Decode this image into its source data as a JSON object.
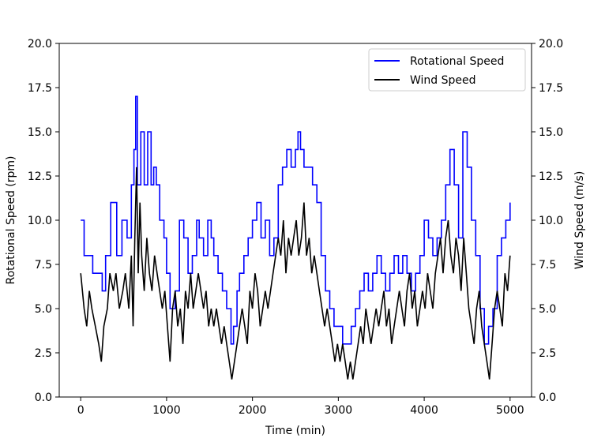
{
  "chart_data": {
    "type": "line",
    "title": "",
    "xlabel": "Time (min)",
    "ylabel_left": "Rotational Speed (rpm)",
    "ylabel_right": "Wind Speed (m/s)",
    "xlim": [
      -250,
      5250
    ],
    "ylim_left": [
      0,
      20
    ],
    "ylim_right": [
      0,
      20
    ],
    "xticks": [
      0,
      1000,
      2000,
      3000,
      4000,
      5000
    ],
    "xtick_labels": [
      "0",
      "1000",
      "2000",
      "3000",
      "4000",
      "5000"
    ],
    "yticks": [
      0,
      2.5,
      5,
      7.5,
      10,
      12.5,
      15,
      17.5,
      20
    ],
    "ytick_labels": [
      "0.0",
      "2.5",
      "5.0",
      "7.5",
      "10.0",
      "12.5",
      "15.0",
      "17.5",
      "20.0"
    ],
    "grid": false,
    "legend_position": "top-right",
    "series": [
      {
        "name": "Rotational Speed",
        "axis": "left",
        "color": "#0000ff",
        "step": true,
        "points": [
          [
            0,
            10
          ],
          [
            40,
            8
          ],
          [
            140,
            7
          ],
          [
            250,
            6
          ],
          [
            290,
            8
          ],
          [
            350,
            11
          ],
          [
            420,
            8
          ],
          [
            480,
            10
          ],
          [
            540,
            9
          ],
          [
            590,
            12
          ],
          [
            620,
            14
          ],
          [
            640,
            17
          ],
          [
            660,
            12
          ],
          [
            700,
            15
          ],
          [
            740,
            12
          ],
          [
            780,
            15
          ],
          [
            820,
            12
          ],
          [
            850,
            13
          ],
          [
            880,
            12
          ],
          [
            920,
            10
          ],
          [
            970,
            9
          ],
          [
            1000,
            7
          ],
          [
            1040,
            5
          ],
          [
            1100,
            6
          ],
          [
            1150,
            10
          ],
          [
            1200,
            9
          ],
          [
            1250,
            7
          ],
          [
            1300,
            8
          ],
          [
            1350,
            10
          ],
          [
            1380,
            9
          ],
          [
            1430,
            8
          ],
          [
            1480,
            10
          ],
          [
            1520,
            9
          ],
          [
            1550,
            8
          ],
          [
            1600,
            7
          ],
          [
            1650,
            6
          ],
          [
            1700,
            5
          ],
          [
            1750,
            3
          ],
          [
            1780,
            4
          ],
          [
            1820,
            6
          ],
          [
            1850,
            7
          ],
          [
            1900,
            8
          ],
          [
            1950,
            9
          ],
          [
            2000,
            10
          ],
          [
            2050,
            11
          ],
          [
            2100,
            9
          ],
          [
            2150,
            10
          ],
          [
            2200,
            8
          ],
          [
            2250,
            9
          ],
          [
            2300,
            12
          ],
          [
            2350,
            13
          ],
          [
            2400,
            14
          ],
          [
            2450,
            13
          ],
          [
            2500,
            14
          ],
          [
            2530,
            15
          ],
          [
            2560,
            14
          ],
          [
            2600,
            13
          ],
          [
            2650,
            13
          ],
          [
            2700,
            12
          ],
          [
            2750,
            11
          ],
          [
            2800,
            8
          ],
          [
            2850,
            6
          ],
          [
            2900,
            5
          ],
          [
            2950,
            4
          ],
          [
            3000,
            4
          ],
          [
            3050,
            3
          ],
          [
            3100,
            3
          ],
          [
            3150,
            4
          ],
          [
            3200,
            5
          ],
          [
            3250,
            6
          ],
          [
            3300,
            7
          ],
          [
            3350,
            6
          ],
          [
            3400,
            7
          ],
          [
            3450,
            8
          ],
          [
            3500,
            7
          ],
          [
            3550,
            6
          ],
          [
            3600,
            7
          ],
          [
            3650,
            8
          ],
          [
            3700,
            7
          ],
          [
            3750,
            8
          ],
          [
            3800,
            7
          ],
          [
            3850,
            6
          ],
          [
            3900,
            7
          ],
          [
            3950,
            8
          ],
          [
            4000,
            10
          ],
          [
            4050,
            9
          ],
          [
            4100,
            8
          ],
          [
            4150,
            9
          ],
          [
            4200,
            10
          ],
          [
            4250,
            12
          ],
          [
            4300,
            14
          ],
          [
            4350,
            12
          ],
          [
            4400,
            9
          ],
          [
            4450,
            15
          ],
          [
            4500,
            13
          ],
          [
            4550,
            10
          ],
          [
            4600,
            8
          ],
          [
            4650,
            5
          ],
          [
            4700,
            3
          ],
          [
            4750,
            4
          ],
          [
            4800,
            5
          ],
          [
            4850,
            8
          ],
          [
            4900,
            9
          ],
          [
            4950,
            10
          ],
          [
            5000,
            11
          ]
        ]
      },
      {
        "name": "Wind Speed",
        "axis": "right",
        "color": "#000000",
        "step": false,
        "points": [
          [
            0,
            7
          ],
          [
            40,
            5
          ],
          [
            70,
            4
          ],
          [
            100,
            6
          ],
          [
            130,
            5
          ],
          [
            170,
            4
          ],
          [
            210,
            3
          ],
          [
            240,
            2
          ],
          [
            270,
            4
          ],
          [
            310,
            5
          ],
          [
            340,
            7
          ],
          [
            380,
            6
          ],
          [
            410,
            7
          ],
          [
            450,
            5
          ],
          [
            490,
            6
          ],
          [
            520,
            7
          ],
          [
            560,
            5
          ],
          [
            590,
            8
          ],
          [
            610,
            4
          ],
          [
            630,
            9
          ],
          [
            650,
            13
          ],
          [
            670,
            7
          ],
          [
            690,
            11
          ],
          [
            710,
            8
          ],
          [
            740,
            6
          ],
          [
            770,
            9
          ],
          [
            800,
            7
          ],
          [
            830,
            6
          ],
          [
            860,
            8
          ],
          [
            890,
            7
          ],
          [
            920,
            6
          ],
          [
            950,
            5
          ],
          [
            980,
            6
          ],
          [
            1010,
            4
          ],
          [
            1040,
            2
          ],
          [
            1070,
            5
          ],
          [
            1100,
            6
          ],
          [
            1130,
            4
          ],
          [
            1160,
            5
          ],
          [
            1190,
            3
          ],
          [
            1220,
            6
          ],
          [
            1250,
            5
          ],
          [
            1280,
            7
          ],
          [
            1310,
            5
          ],
          [
            1340,
            6
          ],
          [
            1370,
            7
          ],
          [
            1400,
            6
          ],
          [
            1430,
            5
          ],
          [
            1460,
            6
          ],
          [
            1490,
            4
          ],
          [
            1520,
            5
          ],
          [
            1550,
            4
          ],
          [
            1580,
            5
          ],
          [
            1610,
            4
          ],
          [
            1640,
            3
          ],
          [
            1670,
            4
          ],
          [
            1700,
            3
          ],
          [
            1730,
            2
          ],
          [
            1760,
            1
          ],
          [
            1790,
            2
          ],
          [
            1820,
            3
          ],
          [
            1850,
            4
          ],
          [
            1880,
            5
          ],
          [
            1910,
            4
          ],
          [
            1940,
            3
          ],
          [
            1970,
            6
          ],
          [
            2000,
            5
          ],
          [
            2030,
            7
          ],
          [
            2060,
            6
          ],
          [
            2090,
            4
          ],
          [
            2120,
            5
          ],
          [
            2150,
            6
          ],
          [
            2180,
            5
          ],
          [
            2210,
            6
          ],
          [
            2240,
            7
          ],
          [
            2270,
            8
          ],
          [
            2300,
            9
          ],
          [
            2330,
            8
          ],
          [
            2360,
            10
          ],
          [
            2390,
            7
          ],
          [
            2420,
            9
          ],
          [
            2450,
            8
          ],
          [
            2480,
            9
          ],
          [
            2510,
            10
          ],
          [
            2540,
            8
          ],
          [
            2570,
            9
          ],
          [
            2600,
            11
          ],
          [
            2630,
            8
          ],
          [
            2660,
            9
          ],
          [
            2690,
            7
          ],
          [
            2720,
            8
          ],
          [
            2750,
            7
          ],
          [
            2780,
            6
          ],
          [
            2810,
            5
          ],
          [
            2840,
            4
          ],
          [
            2870,
            5
          ],
          [
            2900,
            4
          ],
          [
            2930,
            3
          ],
          [
            2960,
            2
          ],
          [
            2990,
            3
          ],
          [
            3020,
            2
          ],
          [
            3050,
            3
          ],
          [
            3080,
            2
          ],
          [
            3110,
            1
          ],
          [
            3140,
            2
          ],
          [
            3170,
            1
          ],
          [
            3200,
            2
          ],
          [
            3230,
            3
          ],
          [
            3260,
            4
          ],
          [
            3290,
            3
          ],
          [
            3320,
            5
          ],
          [
            3350,
            4
          ],
          [
            3380,
            3
          ],
          [
            3410,
            4
          ],
          [
            3440,
            5
          ],
          [
            3470,
            4
          ],
          [
            3500,
            5
          ],
          [
            3530,
            6
          ],
          [
            3560,
            4
          ],
          [
            3590,
            5
          ],
          [
            3620,
            3
          ],
          [
            3650,
            4
          ],
          [
            3680,
            5
          ],
          [
            3710,
            6
          ],
          [
            3740,
            5
          ],
          [
            3770,
            4
          ],
          [
            3800,
            6
          ],
          [
            3830,
            7
          ],
          [
            3860,
            5
          ],
          [
            3890,
            6
          ],
          [
            3920,
            4
          ],
          [
            3950,
            5
          ],
          [
            3980,
            6
          ],
          [
            4010,
            5
          ],
          [
            4040,
            7
          ],
          [
            4070,
            6
          ],
          [
            4100,
            5
          ],
          [
            4130,
            7
          ],
          [
            4160,
            8
          ],
          [
            4190,
            9
          ],
          [
            4220,
            7
          ],
          [
            4250,
            9
          ],
          [
            4280,
            10
          ],
          [
            4310,
            8
          ],
          [
            4340,
            7
          ],
          [
            4370,
            9
          ],
          [
            4400,
            8
          ],
          [
            4430,
            6
          ],
          [
            4460,
            9
          ],
          [
            4490,
            7
          ],
          [
            4520,
            5
          ],
          [
            4550,
            4
          ],
          [
            4580,
            3
          ],
          [
            4610,
            5
          ],
          [
            4640,
            6
          ],
          [
            4670,
            4
          ],
          [
            4700,
            3
          ],
          [
            4730,
            2
          ],
          [
            4760,
            1
          ],
          [
            4790,
            3
          ],
          [
            4820,
            5
          ],
          [
            4850,
            6
          ],
          [
            4880,
            5
          ],
          [
            4910,
            4
          ],
          [
            4940,
            7
          ],
          [
            4970,
            6
          ],
          [
            5000,
            8
          ]
        ]
      }
    ]
  }
}
